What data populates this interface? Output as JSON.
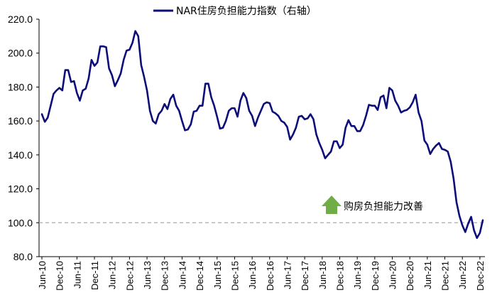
{
  "chart_data": {
    "type": "line",
    "title": "",
    "xlabel": "",
    "ylabel": "",
    "ylim": [
      80,
      220
    ],
    "yticks": [
      "80.0",
      "100.0",
      "120.0",
      "140.0",
      "160.0",
      "180.0",
      "200.0",
      "220.0"
    ],
    "xticks": [
      "Jun-10",
      "Dec-10",
      "Jun-11",
      "Dec-11",
      "Jun-12",
      "Dec-12",
      "Jun-13",
      "Dec-13",
      "Jun-14",
      "Dec-14",
      "Jun-15",
      "Dec-15",
      "Jun-16",
      "Dec-16",
      "Jun-17",
      "Dec-17",
      "Jun-18",
      "Dec-18",
      "Jun-19",
      "Dec-19",
      "Jun-20",
      "Dec-20",
      "Jun-21",
      "Dec-21",
      "Jun-22",
      "Dec-22"
    ],
    "x_start": "2010-06",
    "x_end": "2022-12",
    "legend_position": "top-center",
    "grid": false,
    "series": [
      {
        "name": "NAR住房负担能力指数（右轴）",
        "color": "#0d0d7a",
        "values": [
          164,
          159.5,
          162,
          169,
          176,
          178,
          179.5,
          178,
          190,
          190,
          183,
          183.5,
          176.5,
          172,
          178,
          179,
          185,
          196,
          192.5,
          194.5,
          204,
          204,
          203.5,
          191,
          187,
          180.5,
          184,
          188,
          196,
          201.5,
          202,
          206,
          213,
          210,
          193,
          186,
          178,
          166,
          160,
          158.5,
          164,
          166,
          170,
          167,
          173,
          175.5,
          169,
          166,
          160,
          154.5,
          155,
          158,
          165.5,
          166,
          169,
          169,
          182,
          182,
          174,
          169,
          162.5,
          155.5,
          156,
          160,
          166,
          167.5,
          167.5,
          162.5,
          172,
          176.5,
          173.5,
          166,
          163,
          157,
          162,
          166,
          170,
          171,
          170.5,
          165.5,
          164.5,
          163,
          160,
          159,
          156.5,
          149,
          152,
          156,
          162.5,
          163,
          161,
          161.5,
          164,
          161,
          152,
          147,
          143,
          138,
          140,
          142,
          148,
          148,
          144,
          146,
          156,
          160.5,
          157,
          157,
          154,
          154,
          157.5,
          163,
          169.5,
          169,
          169,
          166.5,
          174,
          175,
          167.5,
          179.5,
          178,
          172,
          169,
          165,
          166,
          166.5,
          168,
          171,
          175.5,
          165,
          160,
          148.5,
          146,
          140.5,
          143.5,
          145.5,
          147,
          143.5,
          143,
          142,
          136,
          126,
          112,
          104,
          98.5,
          94.5,
          99.5,
          103.5,
          95.5,
          91,
          94,
          101.5
        ]
      }
    ],
    "reference_line": {
      "value": 100,
      "color": "#aaaaaa",
      "style": "dashed"
    },
    "annotation": {
      "text": "购房负担能力改善",
      "arrow": "up",
      "arrow_color": "#70ad47"
    }
  }
}
